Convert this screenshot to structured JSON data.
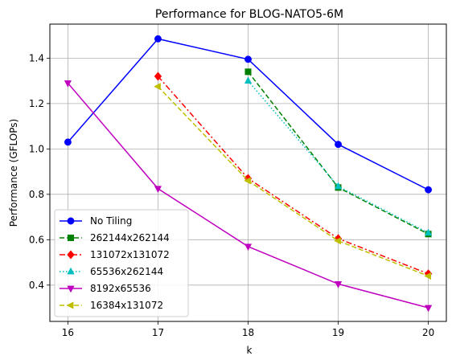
{
  "chart_data": {
    "type": "line",
    "title": "Performance for BLOG-NATO5-6M",
    "xlabel": "k",
    "ylabel": "Performance (GFLOPs)",
    "xlim": [
      15.8,
      20.2
    ],
    "ylim": [
      0.24,
      1.55
    ],
    "x_ticks": [
      16,
      17,
      18,
      19,
      20
    ],
    "y_ticks": [
      0.4,
      0.6,
      0.8,
      1.0,
      1.2,
      1.4
    ],
    "grid": true,
    "legend_position": "lower-left",
    "series": [
      {
        "name": "No Tiling",
        "color": "#0000ff",
        "marker": "circle",
        "dash": "solid",
        "x": [
          16,
          17,
          18,
          19,
          20
        ],
        "values": [
          1.03,
          1.485,
          1.395,
          1.02,
          0.82
        ]
      },
      {
        "name": "262144x262144",
        "color": "#008000",
        "marker": "square",
        "dash": "dashed",
        "x": [
          18,
          19,
          20
        ],
        "values": [
          1.34,
          0.83,
          0.625
        ]
      },
      {
        "name": "131072x131072",
        "color": "#ff0000",
        "marker": "diamond",
        "dash": "dashdot",
        "x": [
          17,
          18,
          19,
          20
        ],
        "values": [
          1.32,
          0.87,
          0.605,
          0.45
        ]
      },
      {
        "name": "65536x262144",
        "color": "#00bfbf",
        "marker": "triangle-up",
        "dash": "dotted",
        "x": [
          18,
          19,
          20
        ],
        "values": [
          1.3,
          0.835,
          0.63
        ]
      },
      {
        "name": "8192x65536",
        "color": "#bf00bf",
        "marker": "triangle-down",
        "dash": "solid",
        "x": [
          16,
          17,
          18,
          19,
          20
        ],
        "values": [
          1.29,
          0.825,
          0.57,
          0.405,
          0.3
        ]
      },
      {
        "name": "16384x131072",
        "color": "#bfbf00",
        "marker": "triangle-left",
        "dash": "dashed",
        "x": [
          17,
          18,
          19,
          20
        ],
        "values": [
          1.275,
          0.86,
          0.595,
          0.44
        ]
      }
    ]
  }
}
